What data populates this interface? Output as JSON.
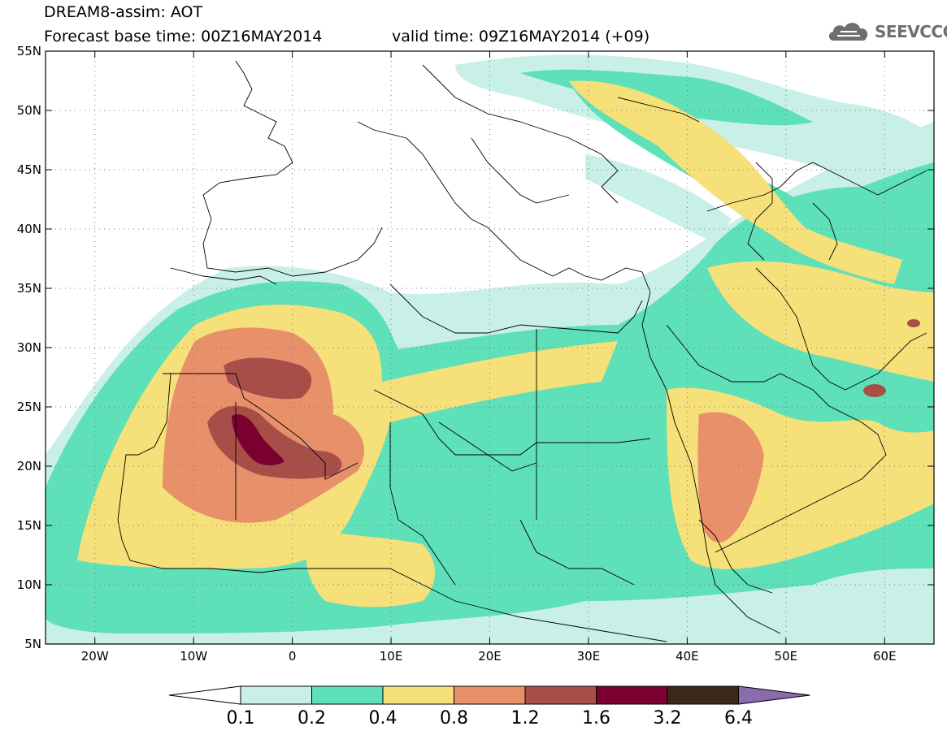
{
  "header": {
    "line1": "DREAM8-assim: AOT",
    "base_time": "Forecast base time: 00Z16MAY2014",
    "valid_time": "valid time: 09Z16MAY2014 (+09)"
  },
  "logo": {
    "text": "SEEVCCC",
    "icon": "cloud-icon"
  },
  "map": {
    "lon_range": [
      -25,
      65
    ],
    "lat_range": [
      5,
      55
    ],
    "lat_ticks": [
      "5N",
      "10N",
      "15N",
      "20N",
      "25N",
      "30N",
      "35N",
      "40N",
      "45N",
      "50N",
      "55N"
    ],
    "lon_ticks": [
      "20W",
      "10W",
      "0",
      "10E",
      "20E",
      "30E",
      "40E",
      "50E",
      "60E"
    ],
    "grid": "dotted"
  },
  "colorbar": {
    "labels": [
      "0.1",
      "0.2",
      "0.4",
      "0.8",
      "1.2",
      "1.6",
      "3.2",
      "6.4"
    ],
    "colors": [
      "#c8f0e8",
      "#5ee0b8",
      "#f5e07a",
      "#e8906a",
      "#a84e48",
      "#7a0030",
      "#3c2818",
      "#8a6cae"
    ],
    "extend": "both"
  }
}
